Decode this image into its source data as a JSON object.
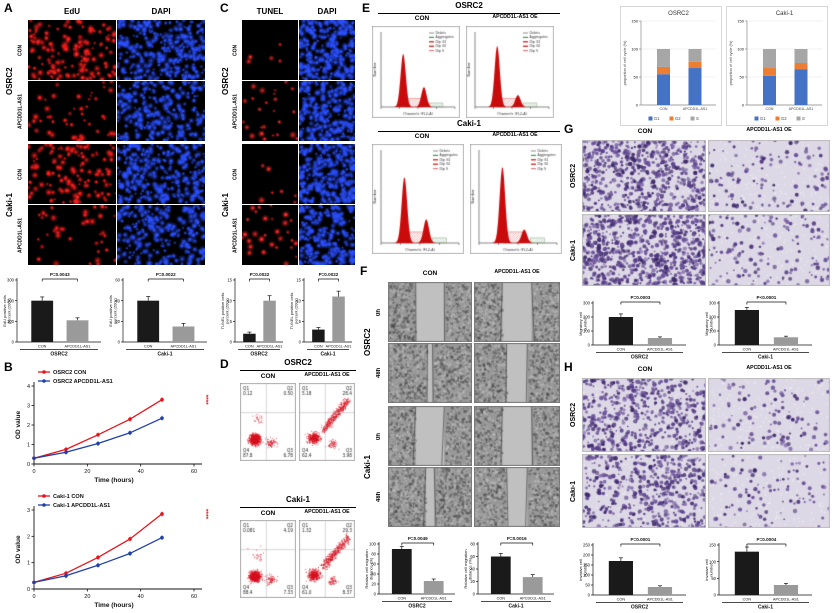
{
  "labels": {
    "A": "A",
    "B": "B",
    "C": "C",
    "D": "D",
    "E": "E",
    "F": "F",
    "G": "G",
    "H": "H",
    "edu": "EdU",
    "dapi": "DAPI",
    "tunel": "TUNEL",
    "con": "CON",
    "as1": "APCDD1L-AS1",
    "oe": "APCDD1L-AS1 OE",
    "osrc2": "OSRC2",
    "caki1": "Caki-1",
    "t0": "0h",
    "t48": "48h"
  },
  "micrographs": {
    "a-osrc2-con-edu": {
      "kind": "fluor",
      "color": "#ff1f1f",
      "count": 150
    },
    "a-osrc2-con-dapi": {
      "kind": "fluor",
      "color": "#2b50ff",
      "count": 300
    },
    "a-osrc2-as1-edu": {
      "kind": "fluor",
      "color": "#ff1f1f",
      "count": 48
    },
    "a-osrc2-as1-dapi": {
      "kind": "fluor",
      "color": "#2b50ff",
      "count": 260
    },
    "a-caki1-con-edu": {
      "kind": "fluor",
      "color": "#ff1f1f",
      "count": 130
    },
    "a-caki1-con-dapi": {
      "kind": "fluor",
      "color": "#2b50ff",
      "count": 300
    },
    "a-caki1-as1-edu": {
      "kind": "fluor",
      "color": "#ff1f1f",
      "count": 40
    },
    "a-caki1-as1-dapi": {
      "kind": "fluor",
      "color": "#2b50ff",
      "count": 260
    },
    "c-osrc2-con-tunel": {
      "kind": "fluor",
      "color": "#ff2a2a",
      "count": 5
    },
    "c-osrc2-con-dapi": {
      "kind": "fluor",
      "color": "#2b50ff",
      "count": 280
    },
    "c-osrc2-as1-tunel": {
      "kind": "fluor",
      "color": "#ff2a2a",
      "count": 26
    },
    "c-osrc2-as1-dapi": {
      "kind": "fluor",
      "color": "#2b50ff",
      "count": 250
    },
    "c-caki1-con-tunel": {
      "kind": "fluor",
      "color": "#ff2a2a",
      "count": 7
    },
    "c-caki1-con-dapi": {
      "kind": "fluor",
      "color": "#2b50ff",
      "count": 280
    },
    "c-caki1-as1-tunel": {
      "kind": "fluor",
      "color": "#ff2a2a",
      "count": 30
    },
    "c-caki1-as1-dapi": {
      "kind": "fluor",
      "color": "#2b50ff",
      "count": 250
    },
    "f-osrc2-0h-con": {
      "kind": "wound",
      "gap": 0.34
    },
    "f-osrc2-0h-oe": {
      "kind": "wound",
      "gap": 0.34
    },
    "f-osrc2-48h-con": {
      "kind": "wound",
      "gap": 0.06
    },
    "f-osrc2-48h-oe": {
      "kind": "wound",
      "gap": 0.24
    },
    "f-caki1-0h-con": {
      "kind": "wound",
      "gap": 0.34
    },
    "f-caki1-0h-oe": {
      "kind": "wound",
      "gap": 0.34
    },
    "f-caki1-48h-con": {
      "kind": "wound",
      "gap": 0.1
    },
    "f-caki1-48h-oe": {
      "kind": "wound",
      "gap": 0.24
    },
    "g-osrc2-con": {
      "kind": "transwell",
      "count": 650
    },
    "g-osrc2-oe": {
      "kind": "transwell",
      "count": 130
    },
    "g-caki1-con": {
      "kind": "transwell",
      "count": 800
    },
    "g-caki1-oe": {
      "kind": "transwell",
      "count": 150
    },
    "h-osrc2-con": {
      "kind": "transwell",
      "count": 550
    },
    "h-osrc2-oe": {
      "kind": "transwell",
      "count": 110
    },
    "h-caki1-con": {
      "kind": "transwell",
      "count": 480
    },
    "h-caki1-oe": {
      "kind": "transwell",
      "count": 100
    }
  },
  "chart_data": [
    {
      "id": "edu_osrc2",
      "type": "bar",
      "ylabel": "EdU positive cells percent (200x)",
      "categories": [
        "CON",
        "APCDD1L-AS1"
      ],
      "values": [
        200,
        105
      ],
      "errors": [
        18,
        12
      ],
      "ylim": [
        0,
        300
      ],
      "yticks": [
        0,
        100,
        200,
        300
      ],
      "p_label": "P=0.0043",
      "group_label": "OSRC2"
    },
    {
      "id": "edu_caki1",
      "type": "bar",
      "ylabel": "EdU positive cells percent (200x)",
      "categories": [
        "CON",
        "APCDD1L-AS1"
      ],
      "values": [
        40,
        15
      ],
      "errors": [
        4,
        3
      ],
      "ylim": [
        0,
        60
      ],
      "yticks": [
        0,
        20,
        40,
        60
      ],
      "p_label": "P=0.0022",
      "group_label": "Caki-1"
    },
    {
      "id": "tunel_osrc2",
      "type": "bar",
      "ylabel": "TUNEL positive cells percent (200x)",
      "categories": [
        "CON",
        "APCDD1L-AS1"
      ],
      "values": [
        2,
        10
      ],
      "errors": [
        0.4,
        1.2
      ],
      "ylim": [
        0,
        15
      ],
      "yticks": [
        0,
        5,
        10,
        15
      ],
      "p_label": "P=0.0022",
      "group_label": "OSRC2"
    },
    {
      "id": "tunel_caki1",
      "type": "bar",
      "ylabel": "TUNEL positive cells percent (200x)",
      "categories": [
        "CON",
        "APCDD1L-AS1"
      ],
      "values": [
        3,
        11
      ],
      "errors": [
        0.5,
        1.3
      ],
      "ylim": [
        0,
        15
      ],
      "yticks": [
        0,
        5,
        10,
        15
      ],
      "p_label": "P=0.0022",
      "group_label": "Caki-1"
    },
    {
      "id": "cck8_osrc2",
      "type": "line",
      "xlabel": "Time (hours)",
      "ylabel": "OD value",
      "x": [
        0,
        12,
        24,
        36,
        48
      ],
      "xlim": [
        0,
        60
      ],
      "xticks": [
        0,
        20,
        40,
        60
      ],
      "ylim": [
        0,
        4
      ],
      "yticks": [
        0,
        1,
        2,
        3,
        4
      ],
      "sig": "****",
      "sig_color": "#e8131c",
      "series": [
        {
          "name": "OSRC2 CON",
          "color": "#e8131c",
          "values": [
            0.3,
            0.75,
            1.5,
            2.3,
            3.3
          ]
        },
        {
          "name": "OSRC2 APCDD1L-AS1",
          "color": "#2040a8",
          "values": [
            0.3,
            0.6,
            1.05,
            1.6,
            2.35
          ]
        }
      ]
    },
    {
      "id": "cck8_caki1",
      "type": "line",
      "xlabel": "Time (hours)",
      "ylabel": "OD value",
      "x": [
        0,
        12,
        24,
        36,
        48
      ],
      "xlim": [
        0,
        60
      ],
      "xticks": [
        0,
        20,
        40,
        60
      ],
      "ylim": [
        0,
        3
      ],
      "yticks": [
        0,
        1,
        2,
        3
      ],
      "sig": "****",
      "sig_color": "#e8131c",
      "series": [
        {
          "name": "Caki-1 CON",
          "color": "#e8131c",
          "values": [
            0.25,
            0.6,
            1.2,
            1.9,
            2.85
          ]
        },
        {
          "name": "Caki-1 APCDD1L-AS1",
          "color": "#2040a8",
          "values": [
            0.25,
            0.5,
            0.9,
            1.35,
            1.95
          ]
        }
      ]
    },
    {
      "id": "flow_osrc2_con",
      "type": "scatter",
      "apoptotic": false,
      "quadrants": [
        {
          "label": "Q1",
          "value": "0.12"
        },
        {
          "label": "Q2",
          "value": "0.50"
        },
        {
          "label": "Q3",
          "value": "6.78"
        },
        {
          "label": "Q4",
          "value": "87.8"
        }
      ]
    },
    {
      "id": "flow_osrc2_oe",
      "type": "scatter",
      "apoptotic": true,
      "quadrants": [
        {
          "label": "Q1",
          "value": "5.18"
        },
        {
          "label": "Q2",
          "value": "28.4"
        },
        {
          "label": "Q3",
          "value": "3.98"
        },
        {
          "label": "Q4",
          "value": "62.4"
        }
      ]
    },
    {
      "id": "flow_caki1_con",
      "type": "scatter",
      "apoptotic": false,
      "quadrants": [
        {
          "label": "Q1",
          "value": "0.081"
        },
        {
          "label": "Q2",
          "value": "4.19"
        },
        {
          "label": "Q3",
          "value": "7.33"
        },
        {
          "label": "Q4",
          "value": "88.4"
        }
      ]
    },
    {
      "id": "flow_caki1_oe",
      "type": "scatter",
      "apoptotic": true,
      "quadrants": [
        {
          "label": "Q1",
          "value": "1.32"
        },
        {
          "label": "Q2",
          "value": "29.3"
        },
        {
          "label": "Q3",
          "value": "8.37"
        },
        {
          "label": "Q4",
          "value": "61.0"
        }
      ]
    },
    {
      "id": "cycle_osrc2_con",
      "type": "histogram",
      "legend": [
        "Debris",
        "Aggregates",
        "Dip G1",
        "Dip G2",
        "Dip S"
      ],
      "xlabel": "Channels (FL2-A)",
      "ylabel": "Number",
      "g1": 0.8,
      "g2": 0.3
    },
    {
      "id": "cycle_osrc2_oe",
      "type": "histogram",
      "legend": [
        "Debris",
        "Aggregates",
        "Dip G1",
        "Dip G2",
        "Dip S"
      ],
      "xlabel": "Channels (FL2-A)",
      "ylabel": "Number",
      "g1": 0.92,
      "g2": 0.18
    },
    {
      "id": "cycle_caki1_con",
      "type": "histogram",
      "legend": [
        "Debris",
        "Aggregates",
        "Dip G1",
        "Dip G2",
        "Dip S"
      ],
      "xlabel": "Channels (FL2-A)",
      "ylabel": "Number",
      "g1": 0.78,
      "g2": 0.28
    },
    {
      "id": "cycle_caki1_oe",
      "type": "histogram",
      "legend": [
        "Debris",
        "Aggregates",
        "Dip G1",
        "Dip G2",
        "Dip S"
      ],
      "xlabel": "Channels (FL2-A)",
      "ylabel": "Number",
      "g1": 0.9,
      "g2": 0.16
    },
    {
      "id": "cycle_bars_osrc2",
      "type": "stacked-bar",
      "title": "OSRC2",
      "ylabel": "proportion of cell cycle (%)",
      "categories": [
        "CON",
        "APCDD1L-AS1"
      ],
      "ylim": [
        0,
        150
      ],
      "yticks": [
        0,
        50,
        100,
        150
      ],
      "series": [
        {
          "name": "G1",
          "color": "#4472c4",
          "values": [
            55,
            66
          ]
        },
        {
          "name": "G2",
          "color": "#ed7d31",
          "values": [
            13,
            11
          ]
        },
        {
          "name": "S",
          "color": "#a6a6a6",
          "values": [
            32,
            23
          ]
        }
      ]
    },
    {
      "id": "cycle_bars_caki1",
      "type": "stacked-bar",
      "title": "Caki-1",
      "ylabel": "proportion of cell cycle (%)",
      "categories": [
        "CON",
        "APCDD1L-AS1"
      ],
      "ylim": [
        0,
        150
      ],
      "yticks": [
        0,
        50,
        100,
        150
      ],
      "series": [
        {
          "name": "G1",
          "color": "#4472c4",
          "values": [
            52,
            64
          ]
        },
        {
          "name": "G2",
          "color": "#ed7d31",
          "values": [
            14,
            11
          ]
        },
        {
          "name": "S",
          "color": "#a6a6a6",
          "values": [
            34,
            25
          ]
        }
      ]
    },
    {
      "id": "wound_osrc2",
      "type": "bar",
      "ylabel": "Relative cell migration distance (%)",
      "categories": [
        "CON",
        "APCDD1L-AS1"
      ],
      "values": [
        90,
        26
      ],
      "errors": [
        5,
        4
      ],
      "ylim": [
        0,
        100
      ],
      "yticks": [
        0,
        20,
        40,
        60,
        80,
        100
      ],
      "p_label": "P=0.0049",
      "group_label": "OSRC2"
    },
    {
      "id": "wound_caki1",
      "type": "bar",
      "ylabel": "Relative cell migration distance (%)",
      "categories": [
        "CON",
        "APCDD1L-AS1"
      ],
      "values": [
        60,
        27
      ],
      "errors": [
        5,
        4
      ],
      "ylim": [
        0,
        80
      ],
      "yticks": [
        0,
        20,
        40,
        60,
        80
      ],
      "p_label": "P=0.0016",
      "group_label": "Caki-1"
    },
    {
      "id": "mig_osrc2",
      "type": "bar",
      "ylabel": "Migratory cell number",
      "categories": [
        "CON",
        "APCDD1L-AS1"
      ],
      "values": [
        200,
        50
      ],
      "errors": [
        22,
        8
      ],
      "ylim": [
        0,
        300
      ],
      "yticks": [
        0,
        100,
        200,
        300
      ],
      "p_label": "P=0.0003",
      "group_label": "OSRC2"
    },
    {
      "id": "mig_caki1",
      "type": "bar",
      "ylabel": "Migratory cell number",
      "categories": [
        "CON",
        "APCDD1L-AS1"
      ],
      "values": [
        250,
        55
      ],
      "errors": [
        18,
        8
      ],
      "ylim": [
        0,
        300
      ],
      "yticks": [
        0,
        100,
        200,
        300
      ],
      "p_label": "P<0.0001",
      "group_label": "Caki-1"
    },
    {
      "id": "inv_osrc2",
      "type": "bar",
      "ylabel": "Invasive cell number",
      "categories": [
        "CON",
        "APCDD1L-AS1"
      ],
      "values": [
        170,
        40
      ],
      "errors": [
        16,
        6
      ],
      "ylim": [
        0,
        250
      ],
      "yticks": [
        0,
        50,
        100,
        150,
        200,
        250
      ],
      "p_label": "P=0.0001",
      "group_label": "OSRC2"
    },
    {
      "id": "inv_caki1",
      "type": "bar",
      "ylabel": "Invasive cell number",
      "categories": [
        "CON",
        "APCDD1L-AS1"
      ],
      "values": [
        130,
        30
      ],
      "errors": [
        14,
        5
      ],
      "ylim": [
        0,
        150
      ],
      "yticks": [
        0,
        50,
        100,
        150
      ],
      "p_label": "P=0.0004",
      "group_label": "Caki-1"
    }
  ]
}
